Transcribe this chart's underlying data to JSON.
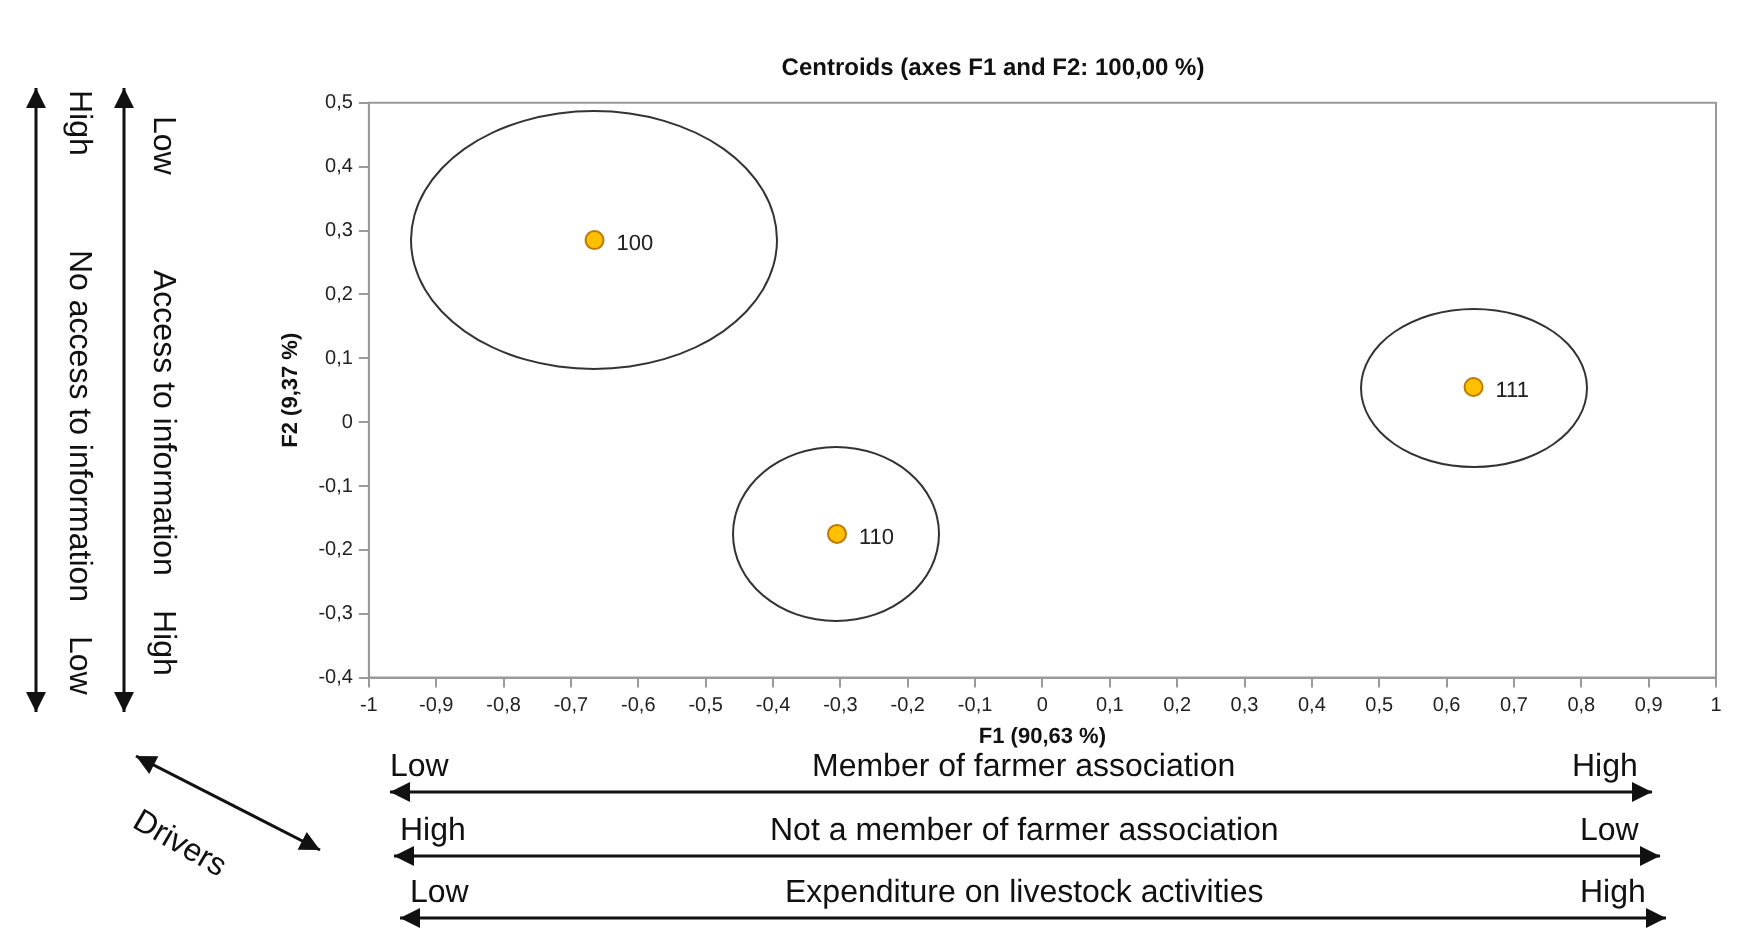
{
  "chart_data": {
    "type": "scatter",
    "title": "Centroids (axes F1 and F2: 100,00 %)",
    "xlabel": "F1 (90,63 %)",
    "ylabel": "F2 (9,37 %)",
    "x": [
      -0.665,
      -0.305,
      0.64
    ],
    "values": [
      0.285,
      -0.175,
      0.055
    ],
    "color": "#ffc000",
    "marker": "circle",
    "xlim": [
      -1,
      1
    ],
    "ylim": [
      -0.4,
      0.5
    ],
    "xticks": [
      -1,
      {
        "value": -0.9,
        "label": "-0,9"
      },
      {
        "value": -0.8,
        "label": "-0,8"
      },
      {
        "value": -0.7,
        "label": "-0,7"
      },
      {
        "value": -0.6,
        "label": "-0,6"
      },
      {
        "value": -0.5,
        "label": "-0,5"
      },
      {
        "value": -0.4,
        "label": "-0,4"
      },
      {
        "value": -0.3,
        "label": "-0,3"
      },
      {
        "value": -0.2,
        "label": "-0,2"
      },
      {
        "value": -0.1,
        "label": "-0,1"
      },
      0,
      {
        "value": 0.1,
        "label": "0,1"
      },
      {
        "value": 0.2,
        "label": "0,2"
      },
      {
        "value": 0.3,
        "label": "0,3"
      },
      {
        "value": 0.4,
        "label": "0,4"
      },
      {
        "value": 0.5,
        "label": "0,5"
      },
      {
        "value": 0.6,
        "label": "0,6"
      },
      {
        "value": 0.7,
        "label": "0,7"
      },
      {
        "value": 0.8,
        "label": "0,8"
      },
      {
        "value": 0.9,
        "label": "0,9"
      },
      1
    ],
    "yticks": [
      {
        "value": -0.4,
        "label": "-0,4"
      },
      {
        "value": -0.3,
        "label": "-0,3"
      },
      {
        "value": -0.2,
        "label": "-0,2"
      },
      {
        "value": -0.1,
        "label": "-0,1"
      },
      0,
      {
        "value": 0.1,
        "label": "0,1"
      },
      {
        "value": 0.2,
        "label": "0,2"
      },
      {
        "value": 0.3,
        "label": "0,3"
      },
      {
        "value": 0.4,
        "label": "0,4"
      },
      {
        "value": 0.5,
        "label": "0,5"
      }
    ],
    "annotations": [
      {
        "text": "100",
        "x": -0.665,
        "y": 0.285
      },
      {
        "text": "110",
        "x": -0.305,
        "y": -0.175
      },
      {
        "text": "111",
        "x": 0.64,
        "y": 0.055
      },
      "High",
      "No access to information",
      "Low",
      "Low",
      "Access to information",
      "High",
      "Drivers",
      "Low",
      "Member of farmer association",
      "High",
      "High",
      "Not a member of farmer association",
      "Low",
      "Low",
      "Expenditure on livestock activities",
      "High"
    ]
  }
}
